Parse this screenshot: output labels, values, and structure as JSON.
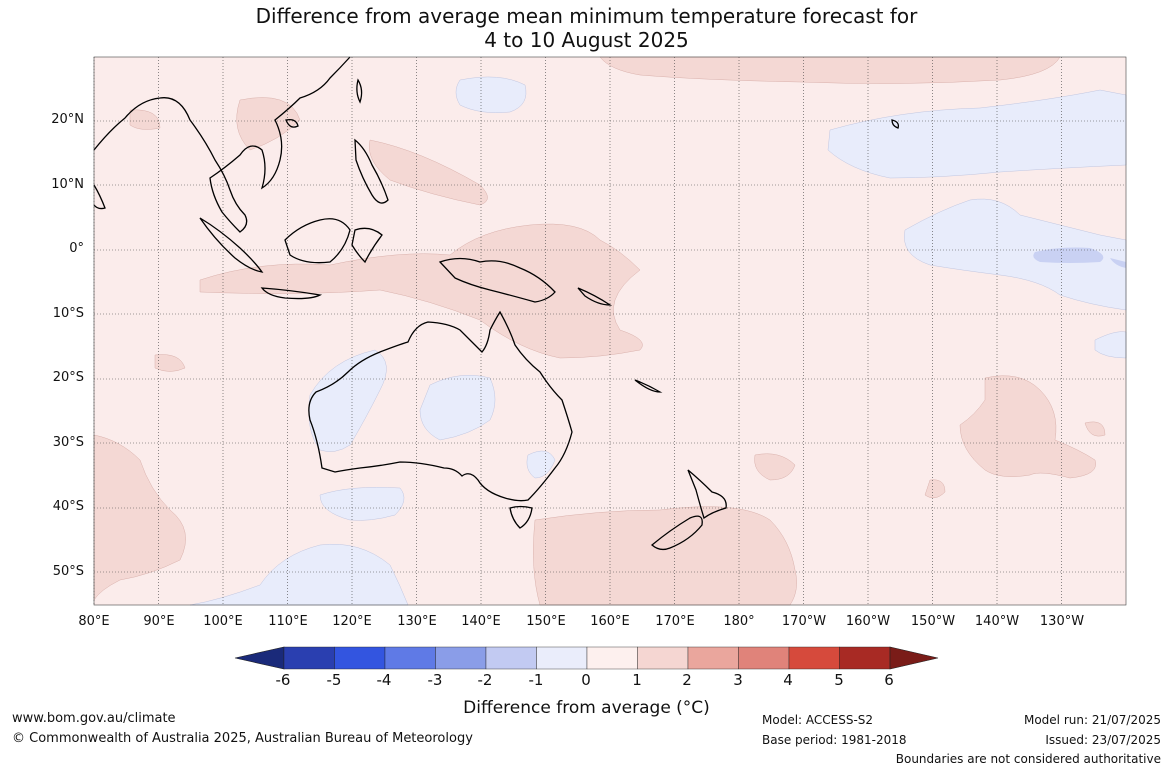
{
  "title_line1": "Difference from average mean minimum temperature forecast for",
  "title_line2": "4 to 10 August 2025",
  "lat_labels": [
    "20°N",
    "10°N",
    "0°",
    "10°S",
    "20°S",
    "30°S",
    "40°S",
    "50°S"
  ],
  "lon_labels": [
    "80°E",
    "90°E",
    "100°E",
    "110°E",
    "120°E",
    "130°E",
    "140°E",
    "150°E",
    "160°E",
    "170°E",
    "180°",
    "170°W",
    "160°W",
    "150°W",
    "140°W",
    "130°W"
  ],
  "legend": {
    "title": "Difference from average (°C)",
    "ticks": [
      "-6",
      "-5",
      "-4",
      "-3",
      "-2",
      "-1",
      "0",
      "1",
      "2",
      "3",
      "4",
      "5",
      "6"
    ],
    "colors": [
      "#1a2a7a",
      "#2a3fb0",
      "#3355e0",
      "#5f7ae6",
      "#8a9de8",
      "#c2caf2",
      "#eaedfb",
      "#fdf0ee",
      "#f5d6d2",
      "#eaa69d",
      "#e0837a",
      "#d64a3c",
      "#a82a24",
      "#7a1c18"
    ]
  },
  "map_colors": {
    "ocean_base": "#fbeceb",
    "warm_1_2": "#f4d8d4",
    "cool_0_1": "#e8ecfb",
    "cool_1_2": "#c9d1f3",
    "coast": "#000000"
  },
  "footer": {
    "website": "www.bom.gov.au/climate",
    "copyright": "© Commonwealth of Australia 2025, Australian Bureau of Meteorology",
    "model": "Model: ACCESS-S2",
    "base_period": "Base period: 1981-2018",
    "model_run": "Model run: 21/07/2025",
    "issued": "Issued: 23/07/2025",
    "disclaimer": "Boundaries are not considered authoritative"
  }
}
